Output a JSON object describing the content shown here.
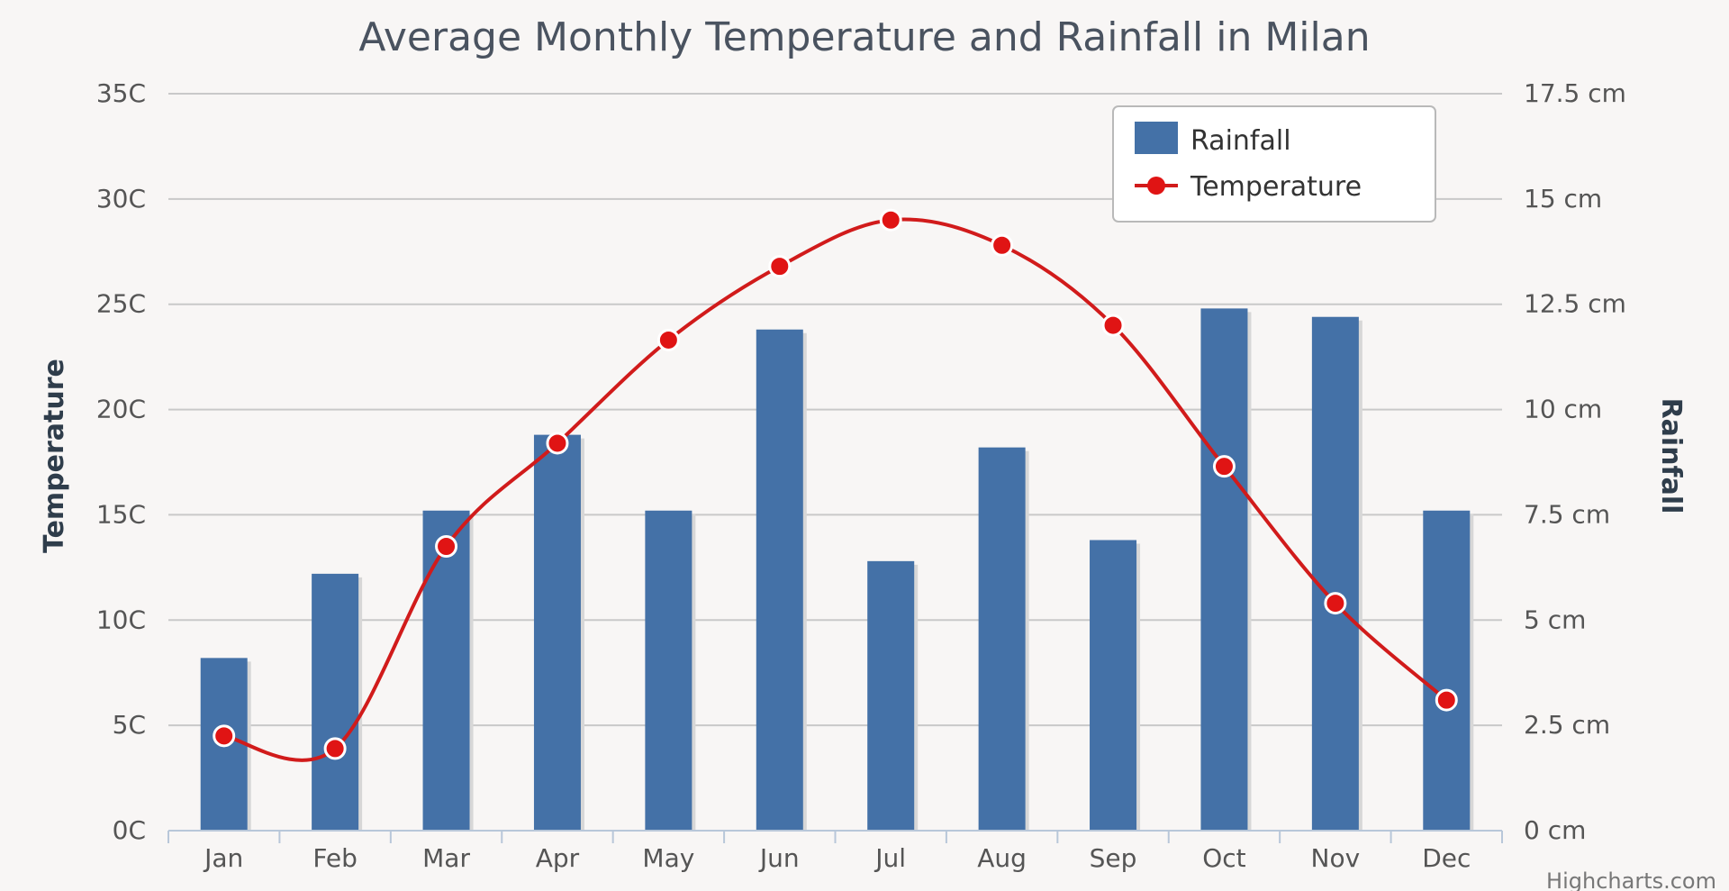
{
  "colors": {
    "background": "#f8f6f5",
    "grid": "#c9c9c9",
    "bar": "#4471a7",
    "bar_shadow": "#d7d7d7",
    "line": "#d11b1b",
    "point": "#e01414",
    "point_stroke": "#ffffff",
    "axis_text": "#555555",
    "title": "#4a5360",
    "axis_title": "#2f3d4b"
  },
  "chart_data": {
    "type": "bar",
    "title": "Average Monthly Temperature and Rainfall in Milan",
    "categories": [
      "Jan",
      "Feb",
      "Mar",
      "Apr",
      "May",
      "Jun",
      "Jul",
      "Aug",
      "Sep",
      "Oct",
      "Nov",
      "Dec"
    ],
    "axes": {
      "left": {
        "title": "Temperature",
        "range": [
          0,
          35
        ],
        "ticks": [
          0,
          5,
          10,
          15,
          20,
          25,
          30,
          35
        ],
        "tick_labels": [
          "0C",
          "5C",
          "10C",
          "15C",
          "20C",
          "25C",
          "30C",
          "35C"
        ]
      },
      "right": {
        "title": "Rainfall",
        "range": [
          0,
          17.5
        ],
        "ticks": [
          0,
          2.5,
          5,
          7.5,
          10,
          12.5,
          15,
          17.5
        ],
        "tick_labels": [
          "0 cm",
          "2.5 cm",
          "5 cm",
          "7.5 cm",
          "10 cm",
          "12.5 cm",
          "15 cm",
          "17.5 cm"
        ]
      }
    },
    "series": [
      {
        "name": "Rainfall",
        "type": "bar",
        "axis": "right",
        "values": [
          4.1,
          6.1,
          7.6,
          9.4,
          7.6,
          11.9,
          6.4,
          9.1,
          6.9,
          12.4,
          12.2,
          7.6
        ]
      },
      {
        "name": "Temperature",
        "type": "line",
        "axis": "left",
        "values": [
          4.5,
          3.9,
          13.5,
          18.4,
          23.3,
          26.8,
          29.0,
          27.8,
          24.0,
          17.3,
          10.8,
          6.2
        ]
      }
    ],
    "legend": {
      "position": "top-right",
      "items": [
        "Rainfall",
        "Temperature"
      ]
    },
    "credits": "Highcharts.com"
  }
}
